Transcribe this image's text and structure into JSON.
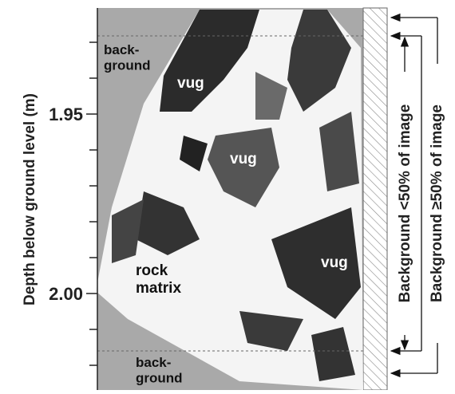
{
  "axis": {
    "label": "Depth below ground level (m)",
    "ticks": [
      "1.95",
      "2.00"
    ]
  },
  "regions": {
    "background_top": "back-\nground",
    "background_bottom": "back-\nground",
    "vug_1": "vug",
    "vug_2": "vug",
    "vug_3": "vug",
    "rock_matrix": "rock\nmatrix"
  },
  "brackets": {
    "inner": "Background <50% of image",
    "outer": "Background ≥50% of image"
  }
}
